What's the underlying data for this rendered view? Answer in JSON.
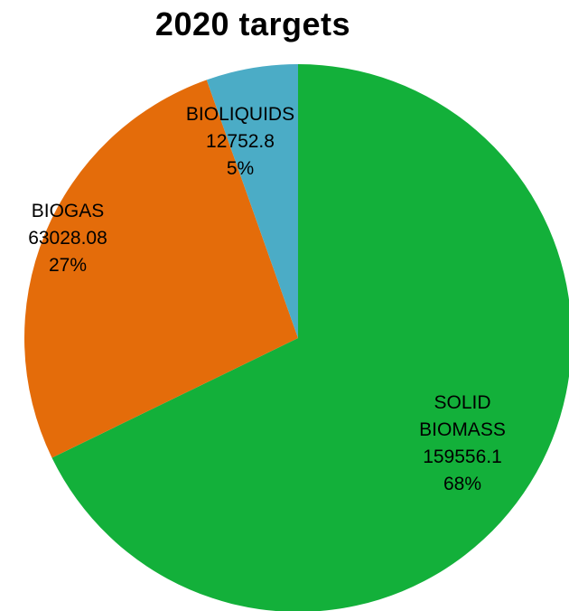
{
  "chart_data": {
    "type": "pie",
    "title": "2020 targets",
    "slices": [
      {
        "name": "SOLID BIOMASS",
        "label_lines": [
          "SOLID",
          "BIOMASS"
        ],
        "value": 159556.1,
        "value_label": "159556.1",
        "percent_label": "68%",
        "color": "#13b03a"
      },
      {
        "name": "BIOGAS",
        "label_lines": [
          "BIOGAS"
        ],
        "value": 63028.08,
        "value_label": "63028.08",
        "percent_label": "27%",
        "color": "#e46c0a"
      },
      {
        "name": "BIOLIQUIDS",
        "label_lines": [
          "BIOLIQUIDS"
        ],
        "value": 12752.8,
        "value_label": "12752.8",
        "percent_label": "5%",
        "color": "#4bacc6"
      }
    ],
    "start_angle": "12 o'clock",
    "direction": "clockwise",
    "legend": "none"
  }
}
